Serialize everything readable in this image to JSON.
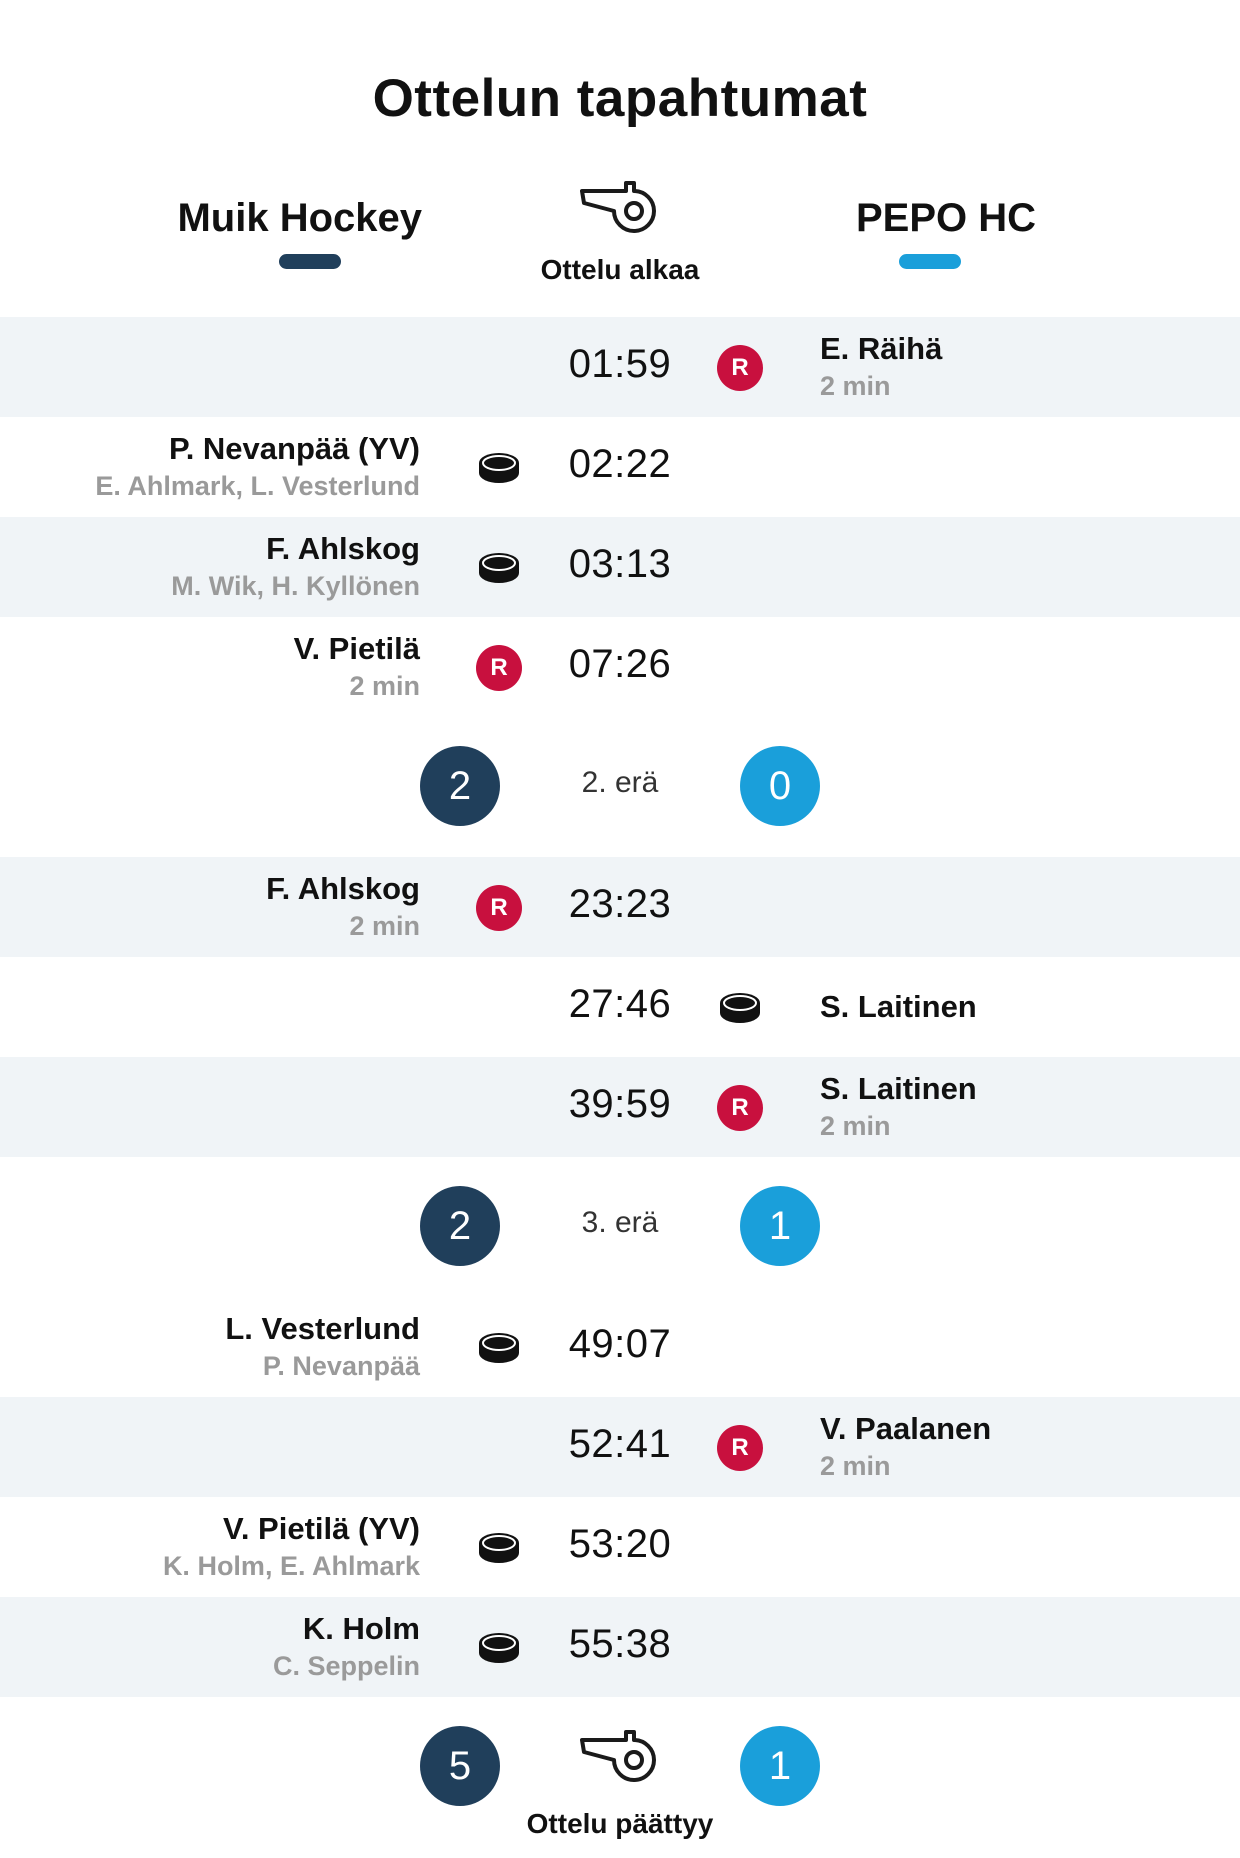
{
  "title": "Ottelun tapahtumat",
  "teams": {
    "home": {
      "name": "Muik Hockey",
      "color": "#203f5b"
    },
    "away": {
      "name": "PEPO HC",
      "color": "#1a9fda"
    }
  },
  "start_label": "Ottelu alkaa",
  "end_label": "Ottelu päättyy",
  "penalty_badge": "R",
  "colors": {
    "penalty": "#c8103e",
    "row_shade": "#f0f4f7",
    "assist_gray": "#9a9a9a"
  },
  "events": [
    {
      "time": "01:59",
      "side": "away",
      "type": "penalty",
      "player": "E. Räihä",
      "detail": "2 min"
    },
    {
      "time": "02:22",
      "side": "home",
      "type": "goal",
      "player": "P. Nevanpää (YV)",
      "detail": "E. Ahlmark, L. Vesterlund"
    },
    {
      "time": "03:13",
      "side": "home",
      "type": "goal",
      "player": "F. Ahlskog",
      "detail": "M. Wik, H. Kyllönen"
    },
    {
      "time": "07:26",
      "side": "home",
      "type": "penalty",
      "player": "V. Pietilä",
      "detail": "2 min"
    },
    {
      "time": "23:23",
      "side": "home",
      "type": "penalty",
      "player": "F. Ahlskog",
      "detail": "2 min"
    },
    {
      "time": "27:46",
      "side": "away",
      "type": "goal",
      "player": "S. Laitinen",
      "detail": ""
    },
    {
      "time": "39:59",
      "side": "away",
      "type": "penalty",
      "player": "S. Laitinen",
      "detail": "2 min"
    },
    {
      "time": "49:07",
      "side": "home",
      "type": "goal",
      "player": "L. Vesterlund",
      "detail": "P. Nevanpää"
    },
    {
      "time": "52:41",
      "side": "away",
      "type": "penalty",
      "player": "V. Paalanen",
      "detail": "2 min"
    },
    {
      "time": "53:20",
      "side": "home",
      "type": "goal",
      "player": "V. Pietilä (YV)",
      "detail": "K. Holm, E. Ahlmark"
    },
    {
      "time": "55:38",
      "side": "home",
      "type": "goal",
      "player": "K. Holm",
      "detail": "C. Seppelin"
    }
  ],
  "periods": [
    {
      "label": "2. erä",
      "home_score": "2",
      "away_score": "0"
    },
    {
      "label": "3. erä",
      "home_score": "2",
      "away_score": "1"
    }
  ],
  "final_score": {
    "home": "5",
    "away": "1"
  }
}
